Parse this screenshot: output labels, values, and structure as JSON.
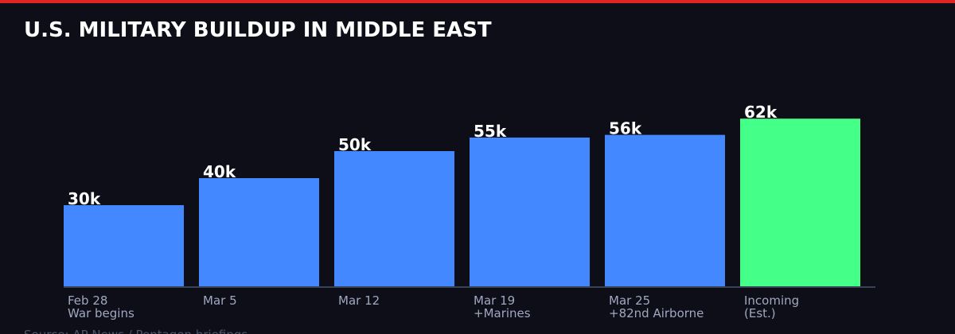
{
  "chart_data": {
    "type": "bar",
    "title": "U.S. MILITARY BUILDUP IN MIDDLE EAST",
    "categories": [
      "Feb 28",
      "Mar 5",
      "Mar 12",
      "Mar 19",
      "Mar 25",
      "Incoming"
    ],
    "notes": [
      "War begins",
      null,
      null,
      "+Marines",
      "+82nd Airborne",
      "(Est.)"
    ],
    "values": [
      30,
      40,
      50,
      55,
      56,
      62
    ],
    "value_labels": [
      "30k",
      "40k",
      "50k",
      "55k",
      "56k",
      "62k"
    ],
    "colors": [
      "#4488ff",
      "#4488ff",
      "#4488ff",
      "#4488ff",
      "#4488ff",
      "#44ff88"
    ],
    "source": "Source: AP News / Pentagon briefings"
  }
}
